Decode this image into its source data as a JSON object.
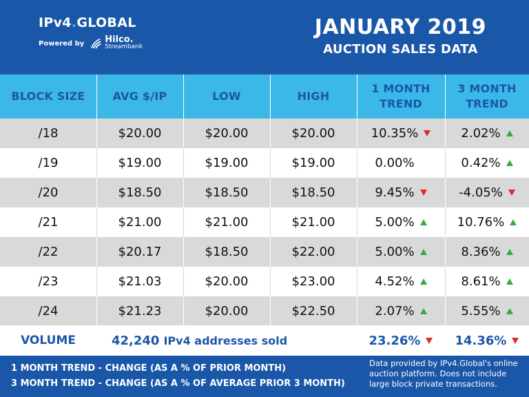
{
  "brand": {
    "name": "IPv4",
    "name_dot": ".",
    "name_suffix": "GLOBAL",
    "powered_by": "Powered by",
    "partner_name": "Hilco.",
    "partner_sub": "Streambank"
  },
  "title": {
    "line1": "JANUARY 2019",
    "line2": "AUCTION SALES DATA"
  },
  "colors": {
    "header_bg": "#1a57a8",
    "column_header_bg": "#3cb8e8",
    "row_gray": "#d9d9da",
    "up_arrow": "#3aaa3f",
    "down_arrow": "#e02827"
  },
  "table": {
    "columns": [
      "BLOCK SIZE",
      "AVG $/IP",
      "LOW",
      "HIGH",
      "1 MONTH TREND",
      "3 MONTH TREND"
    ],
    "column_lines": [
      [
        "BLOCK SIZE"
      ],
      [
        "AVG $/IP"
      ],
      [
        "LOW"
      ],
      [
        "HIGH"
      ],
      [
        "1 MONTH",
        "TREND"
      ],
      [
        "3 MONTH",
        "TREND"
      ]
    ],
    "rows": [
      {
        "block": "/18",
        "avg": "$20.00",
        "low": "$20.00",
        "high": "$20.00",
        "m1": "10.35%",
        "m1_dir": "down",
        "m3": "2.02%",
        "m3_dir": "up"
      },
      {
        "block": "/19",
        "avg": "$19.00",
        "low": "$19.00",
        "high": "$19.00",
        "m1": "0.00%",
        "m1_dir": "none",
        "m3": "0.42%",
        "m3_dir": "up"
      },
      {
        "block": "/20",
        "avg": "$18.50",
        "low": "$18.50",
        "high": "$18.50",
        "m1": "9.45%",
        "m1_dir": "down",
        "m3": "-4.05%",
        "m3_dir": "down"
      },
      {
        "block": "/21",
        "avg": "$21.00",
        "low": "$21.00",
        "high": "$21.00",
        "m1": "5.00%",
        "m1_dir": "up",
        "m3": "10.76%",
        "m3_dir": "up"
      },
      {
        "block": "/22",
        "avg": "$20.17",
        "low": "$18.50",
        "high": "$22.00",
        "m1": "5.00%",
        "m1_dir": "up",
        "m3": "8.36%",
        "m3_dir": "up"
      },
      {
        "block": "/23",
        "avg": "$21.03",
        "low": "$20.00",
        "high": "$23.00",
        "m1": "4.52%",
        "m1_dir": "up",
        "m3": "8.61%",
        "m3_dir": "up"
      },
      {
        "block": "/24",
        "avg": "$21.23",
        "low": "$20.00",
        "high": "$22.50",
        "m1": "2.07%",
        "m1_dir": "up",
        "m3": "5.55%",
        "m3_dir": "up"
      }
    ]
  },
  "volume": {
    "label": "VOLUME",
    "count": "42,240",
    "count_label": "IPv4 addresses sold",
    "m1": "23.26%",
    "m1_dir": "down",
    "m3": "14.36%",
    "m3_dir": "down"
  },
  "footer": {
    "legend_1": "1 MONTH TREND - CHANGE (AS A % OF PRIOR MONTH)",
    "legend_2": "3 MONTH TREND - CHANGE (AS A % OF AVERAGE PRIOR 3 MONTH)",
    "note": "Data provided by IPv4.Global's online auction platform. Does not include large block private transactions."
  }
}
